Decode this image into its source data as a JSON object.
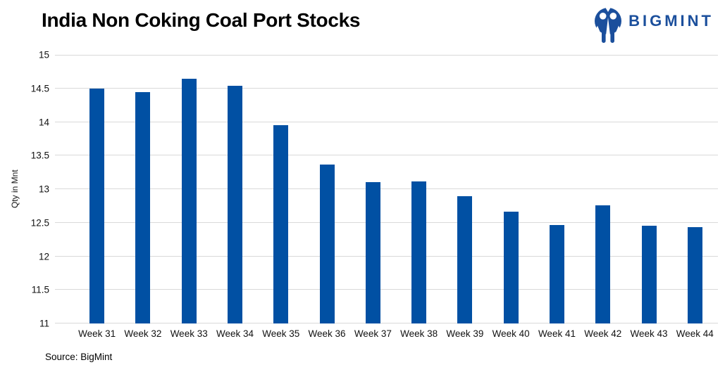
{
  "header": {
    "title": "India Non Coking Coal Port Stocks",
    "brand": "BIGMINT"
  },
  "footer": {
    "source": "Source: BigMint"
  },
  "colors": {
    "bar": "#0150A3",
    "brand": "#1B4F9C",
    "gridline": "#D9D9D9"
  },
  "icons": {
    "logo": "bigmint-monkeys-in-circle"
  },
  "chart_data": {
    "type": "bar",
    "title": "India Non Coking Coal Port Stocks",
    "categories": [
      "Week 31",
      "Week 32",
      "Week 33",
      "Week 34",
      "Week 35",
      "Week 36",
      "Week 37",
      "Week 38",
      "Week 39",
      "Week 40",
      "Week 41",
      "Week 42",
      "Week 43",
      "Week 44"
    ],
    "values": [
      14.5,
      14.44,
      14.64,
      14.54,
      13.95,
      13.37,
      13.1,
      13.12,
      12.9,
      12.67,
      12.47,
      12.76,
      12.46,
      12.43
    ],
    "xlabel": "",
    "ylabel": "Qty in Mnt",
    "ylim": [
      11,
      15
    ],
    "yticks": [
      11,
      11.5,
      12,
      12.5,
      13,
      13.5,
      14,
      14.5,
      15
    ],
    "grid": true,
    "legend": false,
    "source_note": "Source: BigMint"
  }
}
